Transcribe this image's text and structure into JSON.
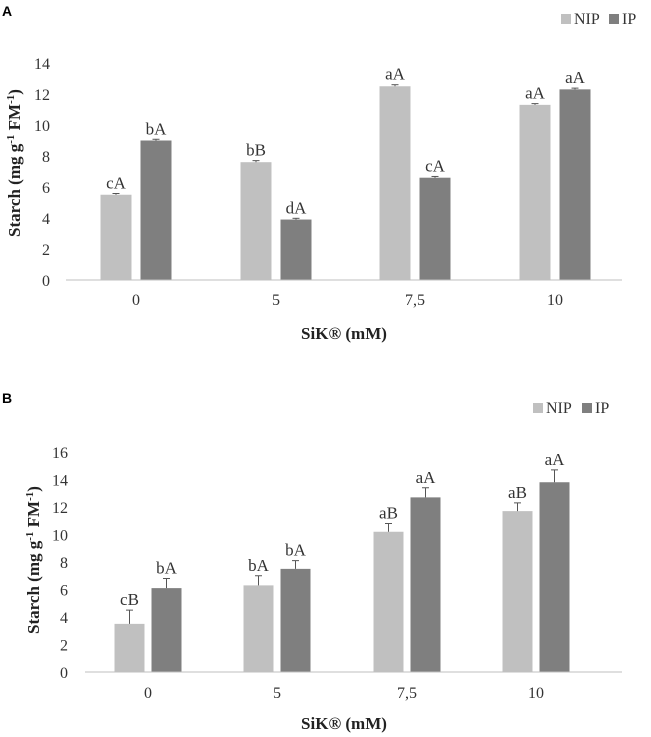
{
  "chart_data": [
    {
      "panel": "A",
      "type": "bar",
      "categories": [
        "0",
        "5",
        "7,5",
        "10"
      ],
      "series": [
        {
          "name": "NIP",
          "color": "#c0c0c0",
          "values": [
            5.5,
            7.6,
            12.5,
            11.3
          ],
          "errors": [
            0.08,
            0.1,
            0.1,
            0.08
          ],
          "labels": [
            "cA",
            "bB",
            "aA",
            "aA"
          ]
        },
        {
          "name": "IP",
          "color": "#7f7f7f",
          "values": [
            9.0,
            3.9,
            6.6,
            12.3
          ],
          "errors": [
            0.08,
            0.08,
            0.08,
            0.08
          ],
          "labels": [
            "bA",
            "dA",
            "cA",
            "aA"
          ]
        }
      ],
      "title": "",
      "xlabel": "SiK® (mM)",
      "ylabel_main": "Starch (mg g",
      "ylabel_sup1": "-1",
      "ylabel_mid": " FM",
      "ylabel_sup2": "-1",
      "ylabel_end": ")",
      "ylim": [
        0,
        14
      ],
      "yticks": [
        "0",
        "2",
        "4",
        "6",
        "8",
        "10",
        "12",
        "14"
      ],
      "grid": false,
      "legend_position": "top-right"
    },
    {
      "panel": "B",
      "type": "bar",
      "categories": [
        "0",
        "5",
        "7,5",
        "10"
      ],
      "series": [
        {
          "name": "NIP",
          "color": "#c0c0c0",
          "values": [
            3.5,
            6.3,
            10.2,
            11.7
          ],
          "errors": [
            1.0,
            0.7,
            0.6,
            0.6
          ],
          "labels": [
            "cB",
            "bA",
            "aB",
            "aB"
          ]
        },
        {
          "name": "IP",
          "color": "#7f7f7f",
          "values": [
            6.1,
            7.5,
            12.7,
            13.8
          ],
          "errors": [
            0.7,
            0.6,
            0.7,
            0.9
          ],
          "labels": [
            "bA",
            "bA",
            "aA",
            "aA"
          ]
        }
      ],
      "title": "",
      "xlabel": "SiK® (mM)",
      "ylabel_main": "Starch (mg g",
      "ylabel_sup1": "-1",
      "ylabel_mid": " FM",
      "ylabel_sup2": "-1",
      "ylabel_end": ")",
      "ylim": [
        0,
        16
      ],
      "yticks": [
        "0",
        "2",
        "4",
        "6",
        "8",
        "10",
        "12",
        "14",
        "16"
      ],
      "grid": false,
      "legend_position": "top-right"
    }
  ]
}
